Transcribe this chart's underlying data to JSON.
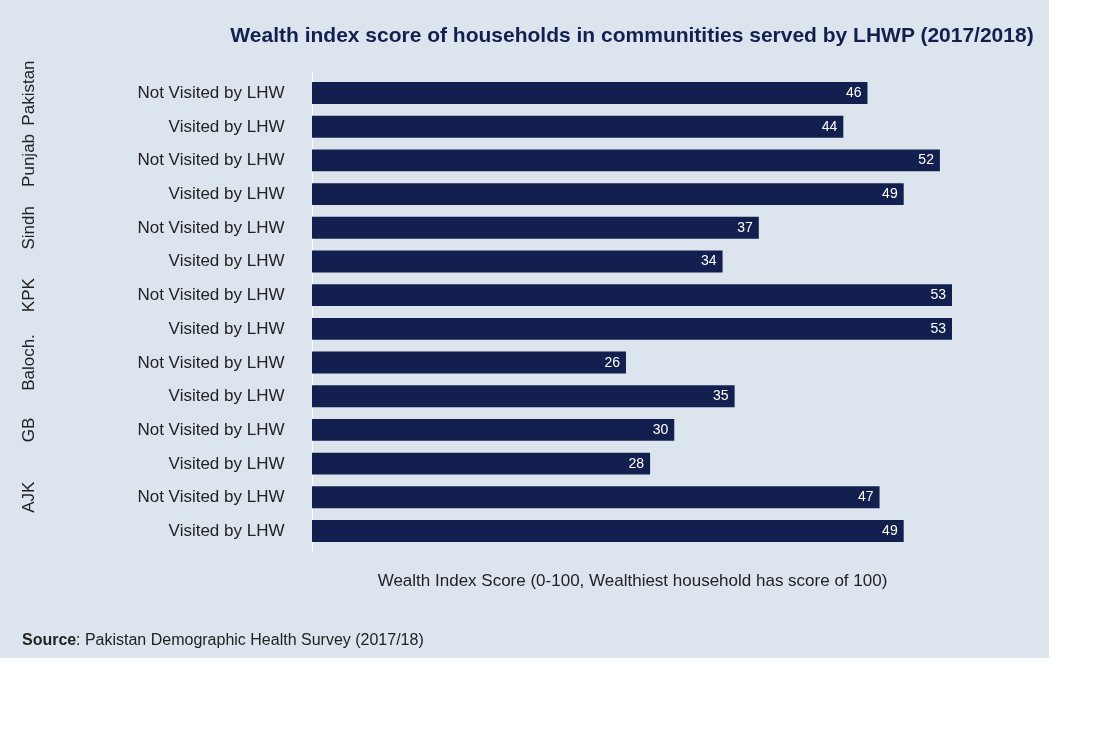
{
  "chart_data": {
    "type": "bar",
    "orientation": "horizontal",
    "title": "Wealth index score of households in communitities served by LHWP (2017/2018)",
    "xlabel": "Wealth Index Score (0-100, Wealthiest household has score of 100)",
    "categories": [
      "Not Visited by LHW",
      "Visited by LHW",
      "Not Visited by LHW",
      "Visited by LHW",
      "Not Visited by LHW",
      "Visited by LHW",
      "Not Visited by LHW",
      "Visited by LHW",
      "Not Visited by LHW",
      "Visited by LHW",
      "Not Visited by LHW",
      "Visited by LHW",
      "Not Visited by LHW",
      "Visited by LHW"
    ],
    "values": [
      46,
      44,
      52,
      49,
      37,
      34,
      53,
      53,
      26,
      35,
      30,
      28,
      47,
      49
    ],
    "color": "#13204f",
    "data_labels": true,
    "annotations": [
      "Pakistan",
      "Punjab",
      "Sindh",
      "KPK",
      "Baloch.",
      "GB",
      "AJK",
      "Source: Pakistan Demographic Health Survey (2017/18)"
    ]
  }
}
